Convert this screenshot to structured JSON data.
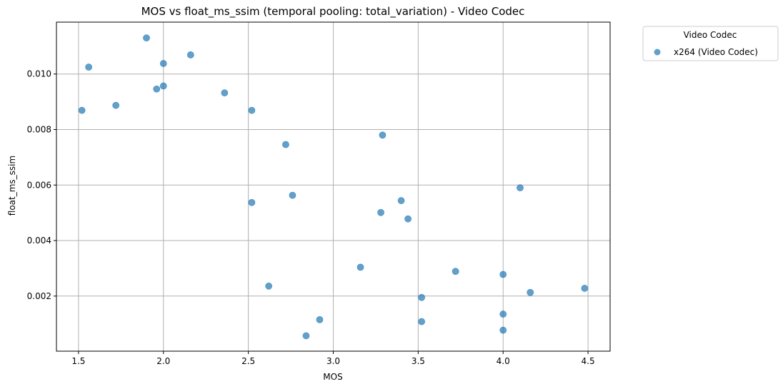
{
  "chart_data": {
    "type": "scatter",
    "title": "MOS vs float_ms_ssim (temporal pooling: total_variation) - Video Codec",
    "xlabel": "MOS",
    "ylabel": "float_ms_ssim",
    "xlim": [
      1.37,
      4.63
    ],
    "ylim": [
      1.5e-05,
      0.01187
    ],
    "xticks": [
      1.5,
      2.0,
      2.5,
      3.0,
      3.5,
      4.0,
      4.5
    ],
    "xtick_labels": [
      "1.5",
      "2.0",
      "2.5",
      "3.0",
      "3.5",
      "4.0",
      "4.5"
    ],
    "yticks": [
      0.002,
      0.004,
      0.006,
      0.008,
      0.01
    ],
    "ytick_labels": [
      "0.002",
      "0.004",
      "0.006",
      "0.008",
      "0.010"
    ],
    "grid": true,
    "legend": {
      "title": "Video Codec",
      "placement": "outside-top-right"
    },
    "series": [
      {
        "name": "x264 (Video Codec)",
        "color": "#1f77b4",
        "opacity": 0.7,
        "points": [
          {
            "x": 1.52,
            "y": 0.00869
          },
          {
            "x": 1.56,
            "y": 0.01025
          },
          {
            "x": 1.72,
            "y": 0.00887
          },
          {
            "x": 1.9,
            "y": 0.0113
          },
          {
            "x": 1.96,
            "y": 0.00946
          },
          {
            "x": 2.0,
            "y": 0.01038
          },
          {
            "x": 2.0,
            "y": 0.00957
          },
          {
            "x": 2.16,
            "y": 0.01069
          },
          {
            "x": 2.36,
            "y": 0.00932
          },
          {
            "x": 2.52,
            "y": 0.00869
          },
          {
            "x": 2.52,
            "y": 0.00537
          },
          {
            "x": 2.62,
            "y": 0.00236
          },
          {
            "x": 2.72,
            "y": 0.00746
          },
          {
            "x": 2.76,
            "y": 0.00563
          },
          {
            "x": 2.84,
            "y": 0.00057
          },
          {
            "x": 2.92,
            "y": 0.00115
          },
          {
            "x": 3.16,
            "y": 0.00304
          },
          {
            "x": 3.28,
            "y": 0.00501
          },
          {
            "x": 3.29,
            "y": 0.0078
          },
          {
            "x": 3.4,
            "y": 0.00544
          },
          {
            "x": 3.44,
            "y": 0.00478
          },
          {
            "x": 3.52,
            "y": 0.00195
          },
          {
            "x": 3.52,
            "y": 0.00108
          },
          {
            "x": 3.72,
            "y": 0.00289
          },
          {
            "x": 4.0,
            "y": 0.00278
          },
          {
            "x": 4.0,
            "y": 0.00135
          },
          {
            "x": 4.0,
            "y": 0.00077
          },
          {
            "x": 4.1,
            "y": 0.0059
          },
          {
            "x": 4.16,
            "y": 0.00213
          },
          {
            "x": 4.48,
            "y": 0.00228
          }
        ]
      }
    ]
  }
}
